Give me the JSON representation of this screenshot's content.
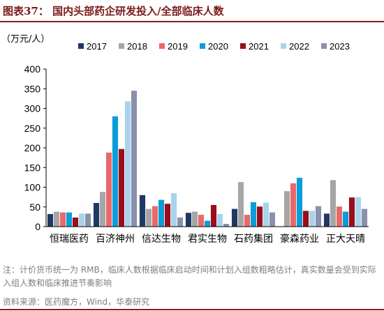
{
  "header": {
    "title": "图表37：  国内头部药企研发投入/全部临床人数"
  },
  "footer": {
    "note": "注：计价货币统一为 RMB，临床人数根据临床启动时间和计划入组数粗略估计，真实数量会受到实际入组人数和临床推进节奏影响",
    "source": "资料来源：医药魔方，Wind，华泰研究"
  },
  "chart_data": {
    "type": "bar",
    "ylabel": "（万元/人）",
    "ylim": [
      0,
      400
    ],
    "yticks": [
      0,
      50,
      100,
      150,
      200,
      250,
      300,
      350,
      400
    ],
    "grid": false,
    "legend_position": "top",
    "categories": [
      "恒瑞医药",
      "百济神州",
      "信达生物",
      "君实生物",
      "石药集团",
      "豪森药业",
      "正大天晴"
    ],
    "series": [
      {
        "name": "2017",
        "color": "#1f3864",
        "values": [
          32,
          60,
          80,
          35,
          45,
          null,
          33
        ]
      },
      {
        "name": "2018",
        "color": "#a6a6a6",
        "values": [
          38,
          88,
          45,
          38,
          113,
          90,
          118
        ]
      },
      {
        "name": "2019",
        "color": "#e8696a",
        "values": [
          36,
          188,
          52,
          30,
          30,
          110,
          51
        ]
      },
      {
        "name": "2020",
        "color": "#0b9dd9",
        "values": [
          36,
          280,
          68,
          15,
          62,
          124,
          38
        ]
      },
      {
        "name": "2021",
        "color": "#9b0d1a",
        "values": [
          23,
          197,
          58,
          55,
          51,
          40,
          74
        ]
      },
      {
        "name": "2022",
        "color": "#a9d3ec",
        "values": [
          33,
          318,
          85,
          32,
          61,
          40,
          75
        ]
      },
      {
        "name": "2023",
        "color": "#8b91ac",
        "values": [
          33,
          345,
          23,
          7,
          36,
          52,
          45
        ]
      }
    ]
  }
}
